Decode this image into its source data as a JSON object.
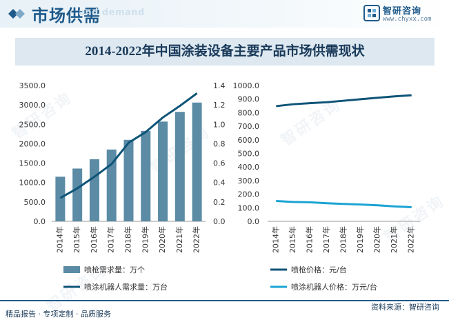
{
  "header": {
    "title": "市场供需",
    "ghost_text": "and demand"
  },
  "brand": {
    "name": "智研咨询",
    "url": "www.chyxx.com",
    "watermark": "智研咨询"
  },
  "footer": {
    "left_text": "精品报告 · 专项定制 · 品质服务",
    "source_label": "资料来源：",
    "source_name": "智研咨询"
  },
  "colors": {
    "bar": "#5b8ba5",
    "dark_line": "#0e5478",
    "light_line": "#1ba3d3",
    "axis_text": "#333333",
    "accent": "#1f5a8a"
  },
  "chart_data": [
    {
      "type": "bar+line",
      "title": "2014-2022年中国涂装设备主要产品市场供需现状",
      "categories": [
        "2014年",
        "2015年",
        "2016年",
        "2017年",
        "2018年",
        "2019年",
        "2020年",
        "2021年",
        "2022年"
      ],
      "series": [
        {
          "name": "喷枪需求量：万个",
          "type": "bar",
          "axis": "left",
          "values": [
            1150,
            1360,
            1600,
            1850,
            2100,
            2330,
            2570,
            2820,
            3060
          ]
        },
        {
          "name": "喷涂机器人需求量：万台",
          "type": "line",
          "axis": "right",
          "values": [
            0.24,
            0.34,
            0.46,
            0.59,
            0.81,
            0.92,
            1.07,
            1.19,
            1.32
          ]
        }
      ],
      "left_axis": {
        "ylim": [
          0,
          3500
        ],
        "ticks": [
          "0.0",
          "500.0",
          "1000.0",
          "1500.0",
          "2000.0",
          "2500.0",
          "3000.0",
          "3500.0"
        ]
      },
      "right_axis": {
        "ylim": [
          0,
          1.4
        ],
        "ticks": [
          "0.0",
          "0.2",
          "0.4",
          "0.6",
          "0.8",
          "1.0",
          "1.2",
          "1.4"
        ]
      },
      "legend": "bottom"
    },
    {
      "type": "line",
      "categories": [
        "2014年",
        "2015年",
        "2016年",
        "2017年",
        "2018年",
        "2019年",
        "2020年",
        "2021年",
        "2022年"
      ],
      "series": [
        {
          "name": "喷枪价格：元/台",
          "values": [
            848,
            862,
            870,
            877,
            888,
            899,
            910,
            920,
            928
          ]
        },
        {
          "name": "喷涂机器人价格：万元/台",
          "values": [
            150,
            143,
            140,
            133,
            128,
            124,
            118,
            110,
            104
          ]
        }
      ],
      "ylim": [
        0,
        1000
      ],
      "ticks": [
        "0.0",
        "100.0",
        "200.0",
        "300.0",
        "400.0",
        "500.0",
        "600.0",
        "700.0",
        "800.0",
        "900.0",
        "1000.0"
      ],
      "legend": "bottom"
    }
  ]
}
